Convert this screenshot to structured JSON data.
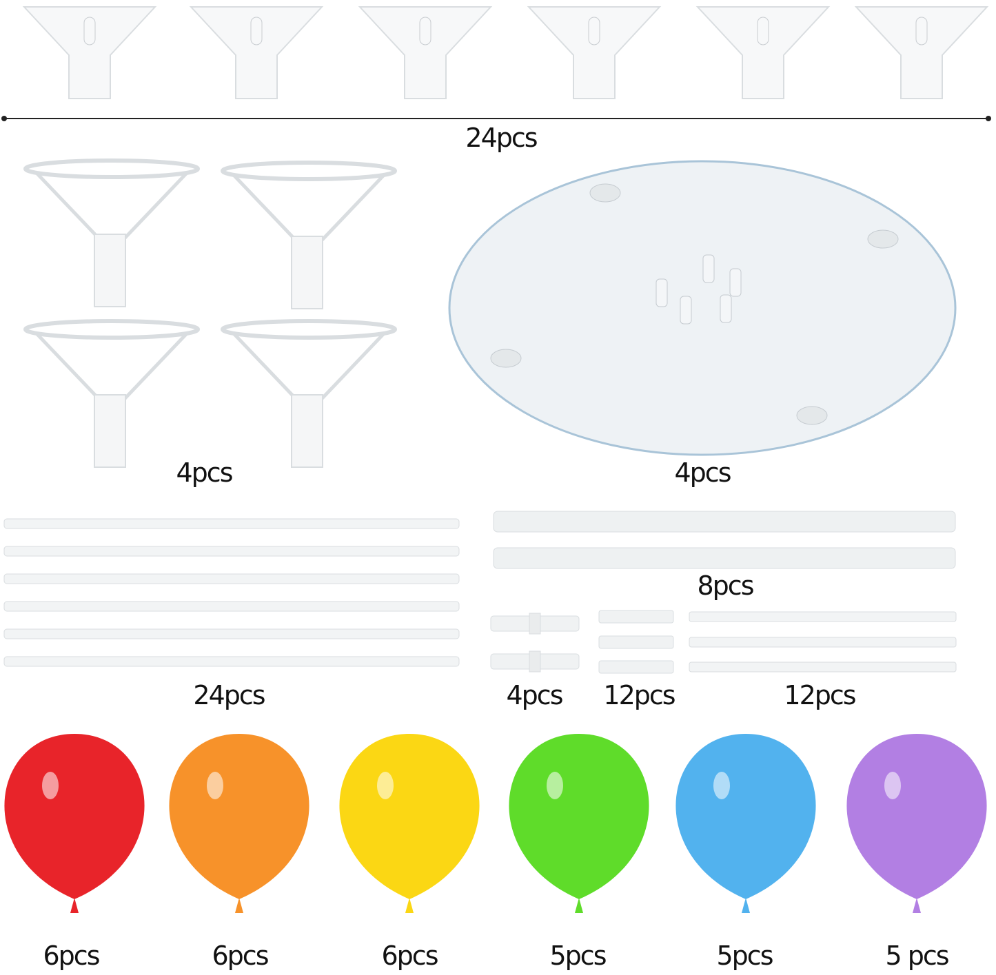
{
  "labels": {
    "cups": "24pcs",
    "holders": "4pcs",
    "bases": "4pcs",
    "short_rods": "24pcs",
    "long_rods": "8pcs",
    "connectors": "4pcs",
    "joints": "12pcs",
    "thin_rods": "12pcs"
  },
  "balloons": [
    {
      "color": "#e8242a",
      "label": "6pcs"
    },
    {
      "color": "#f7922a",
      "label": "6pcs"
    },
    {
      "color": "#fbd714",
      "label": "6pcs"
    },
    {
      "color": "#5fdc2a",
      "label": "5pcs"
    },
    {
      "color": "#52b2ee",
      "label": "5pcs"
    },
    {
      "color": "#b27fe3",
      "label": "5 pcs"
    }
  ]
}
